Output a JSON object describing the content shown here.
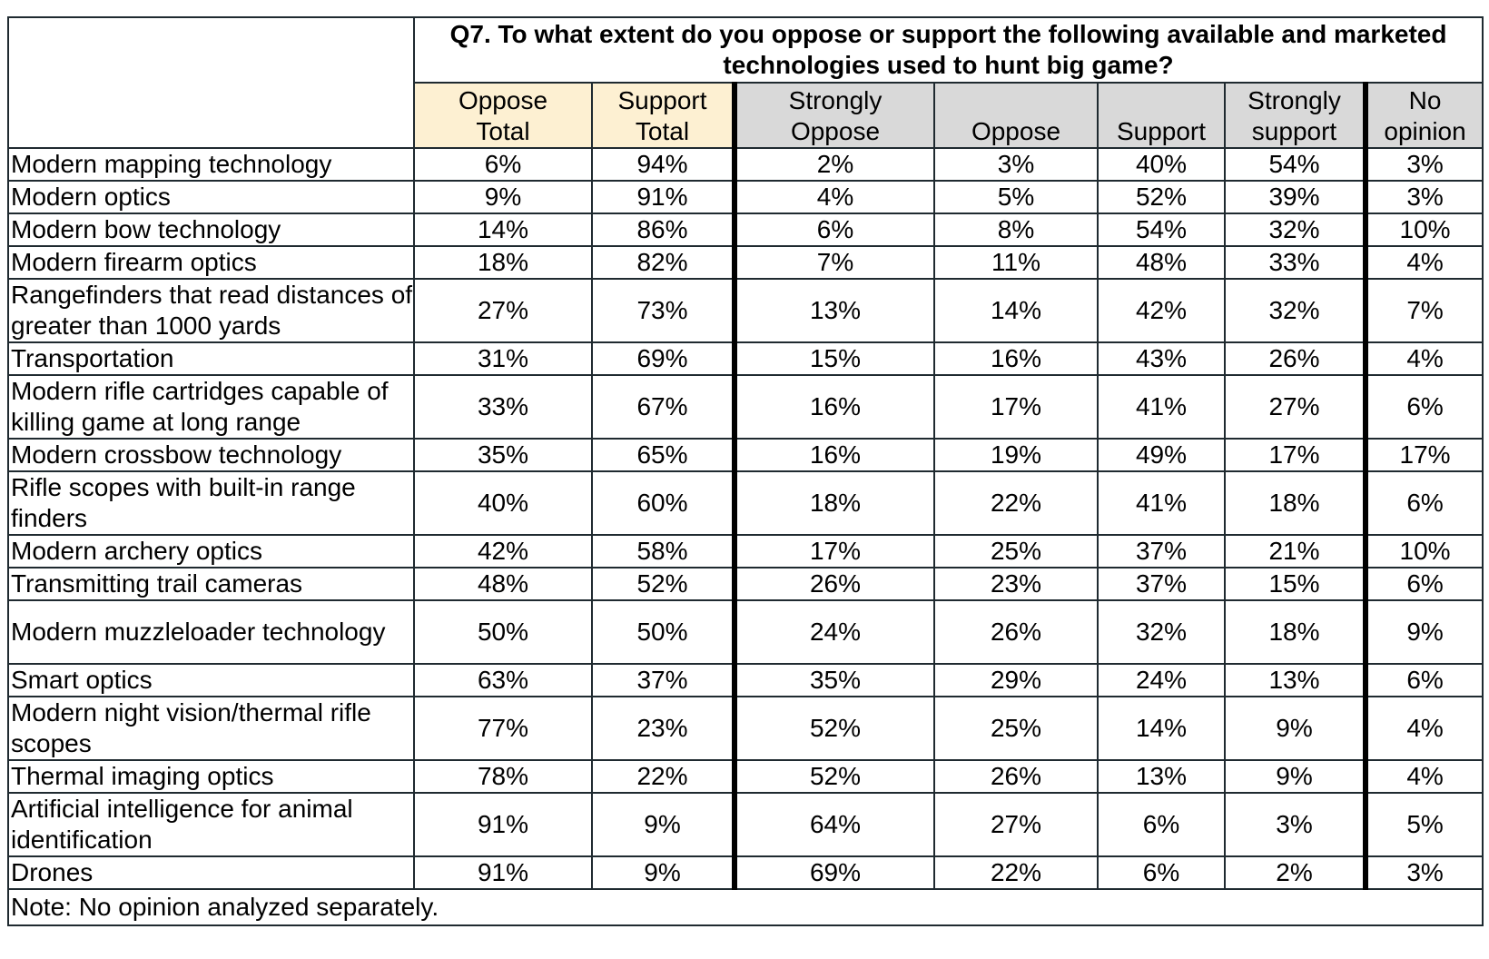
{
  "question": "Q7. To what extent do you oppose or support the following available and marketed technologies used to hunt big game?",
  "columns": [
    {
      "label_line1": "Oppose",
      "label_line2": "Total"
    },
    {
      "label_line1": "Support",
      "label_line2": "Total"
    },
    {
      "label_line1": "Strongly",
      "label_line2": "Oppose"
    },
    {
      "label_line1": "",
      "label_line2": "Oppose"
    },
    {
      "label_line1": "",
      "label_line2": "Support"
    },
    {
      "label_line1": "Strongly",
      "label_line2": "support"
    },
    {
      "label_line1": "No",
      "label_line2": "opinion"
    }
  ],
  "rows": [
    {
      "label": "Modern mapping technology",
      "values": [
        "6%",
        "94%",
        "2%",
        "3%",
        "40%",
        "54%",
        "3%"
      ]
    },
    {
      "label": "Modern optics",
      "values": [
        "9%",
        "91%",
        "4%",
        "5%",
        "52%",
        "39%",
        "3%"
      ]
    },
    {
      "label": "Modern bow technology",
      "values": [
        "14%",
        "86%",
        "6%",
        "8%",
        "54%",
        "32%",
        "10%"
      ]
    },
    {
      "label": "Modern firearm optics",
      "values": [
        "18%",
        "82%",
        "7%",
        "11%",
        "48%",
        "33%",
        "4%"
      ]
    },
    {
      "label": "Rangefinders that read distances of greater than 1000 yards",
      "values": [
        "27%",
        "73%",
        "13%",
        "14%",
        "42%",
        "32%",
        "7%"
      ]
    },
    {
      "label": "Transportation",
      "values": [
        "31%",
        "69%",
        "15%",
        "16%",
        "43%",
        "26%",
        "4%"
      ]
    },
    {
      "label": "Modern rifle cartridges capable of killing game at long range",
      "values": [
        "33%",
        "67%",
        "16%",
        "17%",
        "41%",
        "27%",
        "6%"
      ]
    },
    {
      "label": "Modern crossbow technology",
      "values": [
        "35%",
        "65%",
        "16%",
        "19%",
        "49%",
        "17%",
        "17%"
      ]
    },
    {
      "label": "Rifle scopes with built-in range finders",
      "values": [
        "40%",
        "60%",
        "18%",
        "22%",
        "41%",
        "18%",
        "6%"
      ]
    },
    {
      "label": "Modern archery optics",
      "values": [
        "42%",
        "58%",
        "17%",
        "25%",
        "37%",
        "21%",
        "10%"
      ]
    },
    {
      "label": "Transmitting trail cameras",
      "values": [
        "48%",
        "52%",
        "26%",
        "23%",
        "37%",
        "15%",
        "6%"
      ]
    },
    {
      "label": "Modern muzzleloader technology",
      "values": [
        "50%",
        "50%",
        "24%",
        "26%",
        "32%",
        "18%",
        "9%"
      ]
    },
    {
      "label": "Smart optics",
      "values": [
        "63%",
        "37%",
        "35%",
        "29%",
        "24%",
        "13%",
        "6%"
      ]
    },
    {
      "label": "Modern night vision/thermal rifle scopes",
      "values": [
        "77%",
        "23%",
        "52%",
        "25%",
        "14%",
        "9%",
        "4%"
      ]
    },
    {
      "label": "Thermal imaging optics",
      "values": [
        "78%",
        "22%",
        "52%",
        "26%",
        "13%",
        "9%",
        "4%"
      ]
    },
    {
      "label": "Artificial intelligence for animal identification",
      "values": [
        "91%",
        "9%",
        "64%",
        "27%",
        "6%",
        "3%",
        "5%"
      ]
    },
    {
      "label": "Drones",
      "values": [
        "91%",
        "9%",
        "69%",
        "22%",
        "6%",
        "2%",
        "3%"
      ]
    }
  ],
  "note": "Note: No opinion analyzed separately.",
  "colors": {
    "totals_header_bg": "#fdf0d2",
    "detail_header_bg": "#d9d9d9",
    "border": "#1f2a30"
  }
}
